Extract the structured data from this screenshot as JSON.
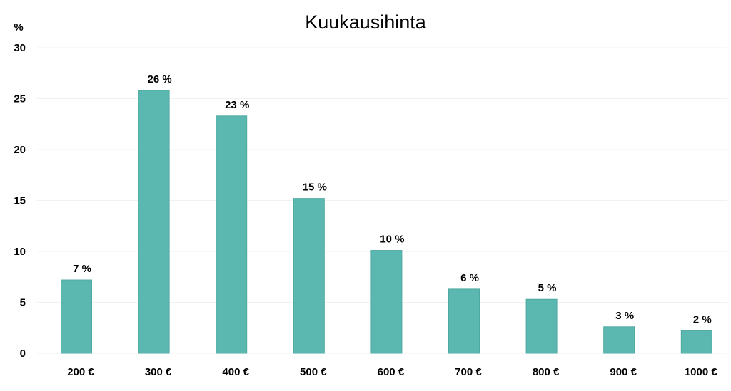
{
  "chart_data": {
    "type": "bar",
    "title": "Kuukausihinta",
    "ylabel": "%",
    "xlabel": "",
    "categories": [
      "200 €",
      "300 €",
      "400 €",
      "500 €",
      "600 €",
      "700 €",
      "800 €",
      "900 €",
      "1000 €"
    ],
    "values": [
      7.2,
      25.8,
      23.3,
      15.2,
      10.1,
      6.3,
      5.3,
      2.6,
      2.2
    ],
    "data_labels": [
      "7 %",
      "26 %",
      "23 %",
      "15 %",
      "10 %",
      "6 %",
      "5 %",
      "3 %",
      "2 %"
    ],
    "y_ticks": [
      "0",
      "5",
      "10",
      "15",
      "20",
      "25",
      "30"
    ],
    "ylim": [
      0,
      30
    ],
    "grid": true,
    "legend": "none",
    "bar_color": "#5bb8b0",
    "bar_edge_color": "#4fa9a1"
  }
}
